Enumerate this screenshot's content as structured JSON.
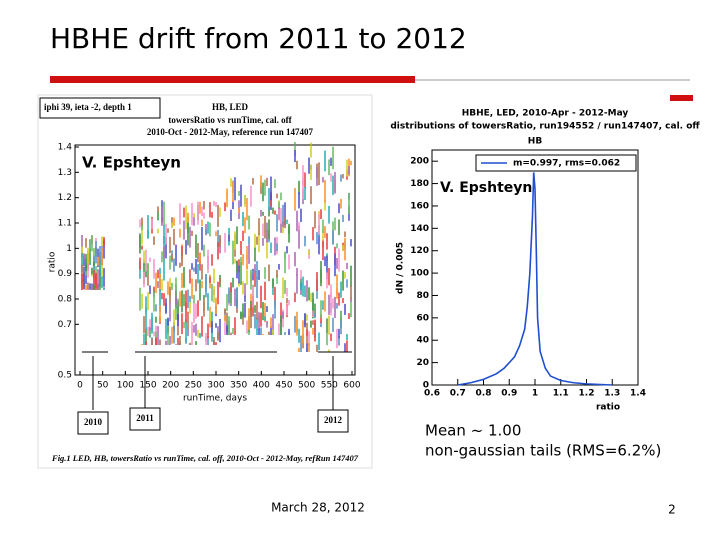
{
  "header": {
    "title": "HBHE drift from 2011 to 2012"
  },
  "left_figure": {
    "author": "V. Epshteyn",
    "inset_label": "iphi 39, ieta -2, depth 1",
    "title_lines": [
      "HB, LED",
      "towersRatio vs runTime, cal. off",
      "2010-Oct - 2012-May, reference run 147407"
    ],
    "xlabel": "runTime, days",
    "ylabel": "ratio",
    "xlim": [
      0,
      600
    ],
    "xticks": [
      0,
      50,
      100,
      150,
      200,
      250,
      300,
      350,
      400,
      450,
      500,
      550,
      600
    ],
    "ylim": [
      0.5,
      1.4
    ],
    "yticks": [
      1.4,
      1.3,
      1.2,
      1.1,
      1,
      0.9,
      0.8,
      0.7,
      0.5
    ],
    "periods": [
      "2010",
      "2011",
      "2012"
    ],
    "caption": "Fig.1 LED, HB, towersRatio vs runTime, cal. off, 2010-Oct - 2012-May, refRun 147407"
  },
  "right_figure": {
    "title_lines": [
      "HBHE, LED, 2010-Apr - 2012-May",
      "distributions of towersRatio, run194552 / run147407, cal. off"
    ],
    "plot_title": "HB",
    "author": "V. Epshteyn",
    "legend": "m=0.997, rms=0.062",
    "xlabel": "ratio",
    "ylabel": "dN / 0.005",
    "xlim": [
      0.6,
      1.4
    ],
    "xticks": [
      0.6,
      0.7,
      0.8,
      0.9,
      1,
      1.1,
      1.2,
      1.3,
      1.4
    ],
    "ylim": [
      0,
      210
    ],
    "yticks": [
      0,
      20,
      40,
      60,
      80,
      100,
      120,
      140,
      160,
      180,
      200
    ],
    "color": "#1f4fcf",
    "x": [
      0.7,
      0.75,
      0.8,
      0.85,
      0.88,
      0.9,
      0.92,
      0.94,
      0.96,
      0.97,
      0.98,
      0.99,
      0.995,
      1.0,
      1.005,
      1.01,
      1.02,
      1.04,
      1.06,
      1.1,
      1.15,
      1.2,
      1.3
    ],
    "values": [
      0,
      2,
      5,
      10,
      15,
      20,
      25,
      35,
      50,
      70,
      100,
      150,
      190,
      175,
      120,
      60,
      30,
      15,
      8,
      4,
      2,
      1,
      0
    ]
  },
  "notes": [
    "Mean   ~ 1.00",
    "non-gaussian tails (RMS=6.2%)"
  ],
  "footer": {
    "date": "March 28, 2012",
    "page": "2"
  }
}
